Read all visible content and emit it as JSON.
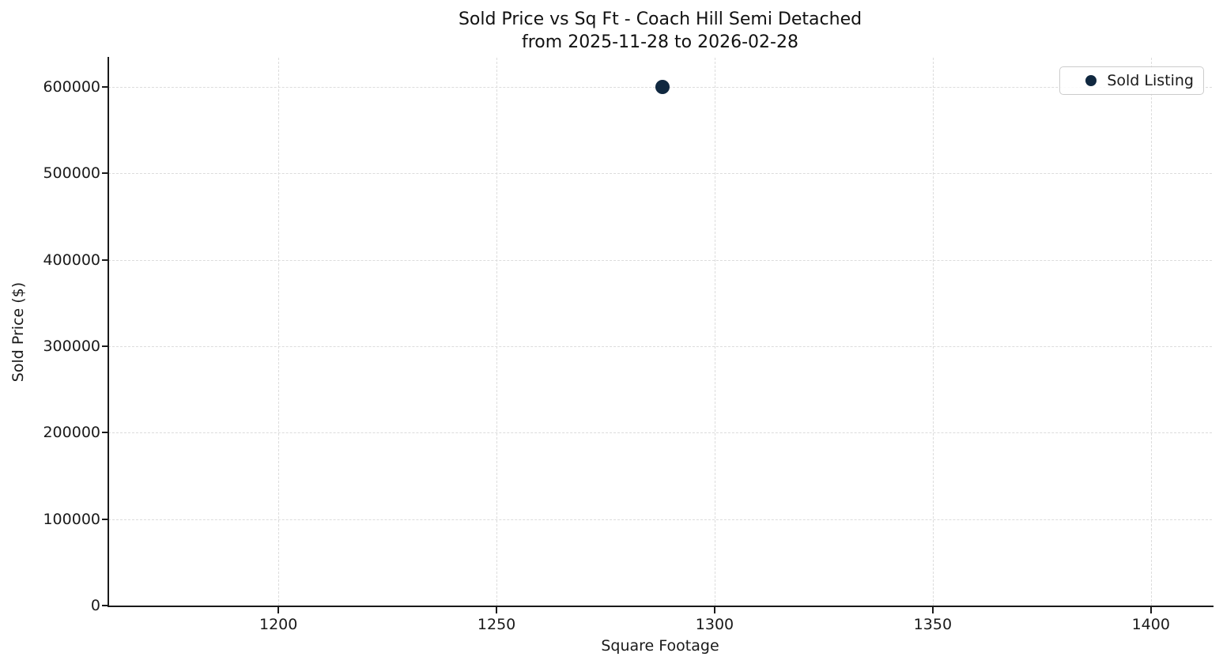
{
  "chart_data": {
    "type": "scatter",
    "title": "Sold Price vs Sq Ft - Coach Hill Semi Detached\nfrom 2025-11-28 to 2026-02-28",
    "title_line1": "Sold Price vs Sq Ft - Coach Hill Semi Detached",
    "title_line2": "from 2025-11-28 to 2026-02-28",
    "xlabel": "Square Footage",
    "ylabel": "Sold Price ($)",
    "xlim": [
      1161,
      1414
    ],
    "ylim": [
      0,
      634000
    ],
    "x_ticks": [
      1200,
      1250,
      1300,
      1350,
      1400
    ],
    "y_ticks": [
      0,
      100000,
      200000,
      300000,
      400000,
      500000,
      600000
    ],
    "grid": true,
    "grid_style": "dashed",
    "legend": {
      "position": "upper right",
      "entries": [
        {
          "label": "Sold Listing",
          "marker": "circle",
          "color": "#102840"
        }
      ]
    },
    "series": [
      {
        "name": "Sold Listing",
        "type": "scatter",
        "color": "#102840",
        "x": [
          1288
        ],
        "y": [
          600000
        ]
      }
    ]
  },
  "colors": {
    "background": "#ffffff",
    "text": "#1a1a1a",
    "grid": "#dcdcdc",
    "spine": "#1a1a1a",
    "marker": "#102840",
    "legend_border": "#cccccc"
  }
}
